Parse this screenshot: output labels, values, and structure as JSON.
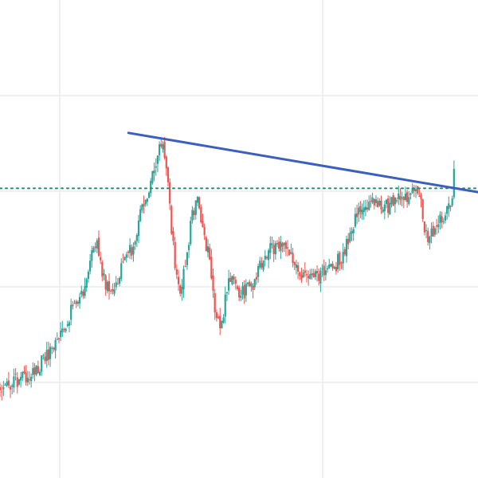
{
  "chart_data": {
    "type": "candlestick",
    "title": "",
    "xlabel": "",
    "ylabel": "",
    "grid": true,
    "legend": "none",
    "xlim": [
      0,
      160
    ],
    "ylim": [
      0,
      100
    ],
    "colors": {
      "up": "#26a69a",
      "down": "#ef5350",
      "trendline": "#3b5fc0",
      "level": "#1e8a6e",
      "grid": "#ececec",
      "background": "#ffffff"
    },
    "grid_x": [
      20,
      108
    ],
    "grid_y": [
      20,
      40,
      60,
      80
    ],
    "close_series": [
      [
        0,
        18.4
      ],
      [
        3,
        19.5
      ],
      [
        6,
        20.3
      ],
      [
        9,
        21.3
      ],
      [
        12,
        22.8
      ],
      [
        15,
        24.9
      ],
      [
        18,
        28.0
      ],
      [
        21,
        31.5
      ],
      [
        24,
        35.0
      ],
      [
        27,
        37.6
      ],
      [
        30,
        44.0
      ],
      [
        32,
        49.8
      ],
      [
        35,
        41.2
      ],
      [
        38,
        39.5
      ],
      [
        41,
        44.0
      ],
      [
        44,
        47.9
      ],
      [
        47,
        55.2
      ],
      [
        50,
        60.0
      ],
      [
        53,
        68.0
      ],
      [
        54,
        70.2
      ],
      [
        56,
        63.0
      ],
      [
        58,
        48.3
      ],
      [
        60,
        38.2
      ],
      [
        62,
        43.5
      ],
      [
        64,
        54.0
      ],
      [
        66,
        58.5
      ],
      [
        68,
        52.0
      ],
      [
        70,
        46.2
      ],
      [
        72,
        35.5
      ],
      [
        74,
        31.0
      ],
      [
        76,
        40.5
      ],
      [
        78,
        43.0
      ],
      [
        80,
        39.0
      ],
      [
        82,
        38.8
      ],
      [
        85,
        41.0
      ],
      [
        88,
        45.5
      ],
      [
        91,
        48.0
      ],
      [
        94,
        49.8
      ],
      [
        97,
        46.6
      ],
      [
        100,
        43.0
      ],
      [
        103,
        41.0
      ],
      [
        106,
        42.0
      ],
      [
        109,
        43.0
      ],
      [
        112,
        44.3
      ],
      [
        115,
        47.0
      ],
      [
        118,
        52.8
      ],
      [
        121,
        56.8
      ],
      [
        124,
        57.2
      ],
      [
        127,
        58.0
      ],
      [
        130,
        56.8
      ],
      [
        133,
        59.0
      ],
      [
        136,
        58.1
      ],
      [
        139,
        60.2
      ],
      [
        141,
        57.0
      ],
      [
        143,
        49.5
      ],
      [
        145,
        52.0
      ],
      [
        147,
        53.8
      ],
      [
        149,
        55.5
      ],
      [
        151,
        56.5
      ],
      [
        152,
        64.5
      ]
    ],
    "reference_line": {
      "y": 60.6,
      "style": "dotted"
    },
    "trendline": {
      "x": [
        43,
        160
      ],
      "y": [
        72.2,
        59.8
      ]
    }
  }
}
